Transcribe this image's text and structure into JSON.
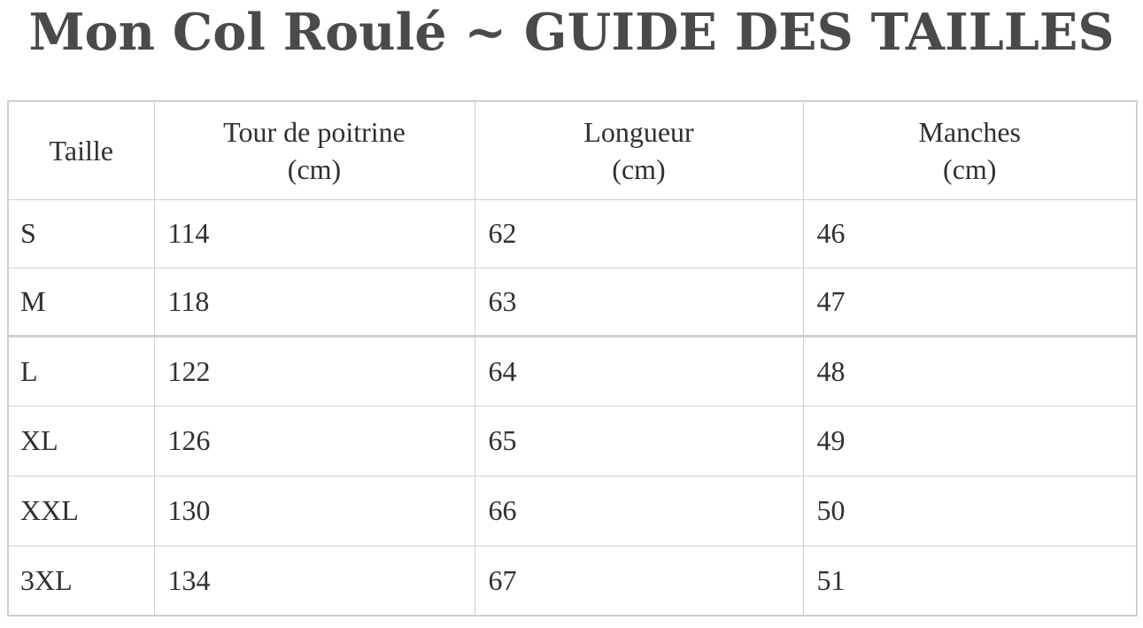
{
  "page": {
    "title": "Mon Col Roulé ~ GUIDE DES TAILLES"
  },
  "size_table": {
    "columns": [
      {
        "label": "Taille",
        "unit": ""
      },
      {
        "label": "Tour de poitrine",
        "unit": "(cm)"
      },
      {
        "label": "Longueur",
        "unit": "(cm)"
      },
      {
        "label": "Manches",
        "unit": "(cm)"
      }
    ],
    "rows": [
      {
        "size": "S",
        "chest_cm": "114",
        "length_cm": "62",
        "sleeve_cm": "46"
      },
      {
        "size": "M",
        "chest_cm": "118",
        "length_cm": "63",
        "sleeve_cm": "47"
      },
      {
        "size": "L",
        "chest_cm": "122",
        "length_cm": "64",
        "sleeve_cm": "48"
      },
      {
        "size": "XL",
        "chest_cm": "126",
        "length_cm": "65",
        "sleeve_cm": "49"
      },
      {
        "size": "XXL",
        "chest_cm": "130",
        "length_cm": "66",
        "sleeve_cm": "50"
      },
      {
        "size": "3XL",
        "chest_cm": "134",
        "length_cm": "67",
        "sleeve_cm": "51"
      }
    ],
    "rows_in_first_block": 2
  },
  "colors": {
    "border": "#d0d0d0",
    "text": "#303030",
    "title": "#4a4a4a"
  }
}
